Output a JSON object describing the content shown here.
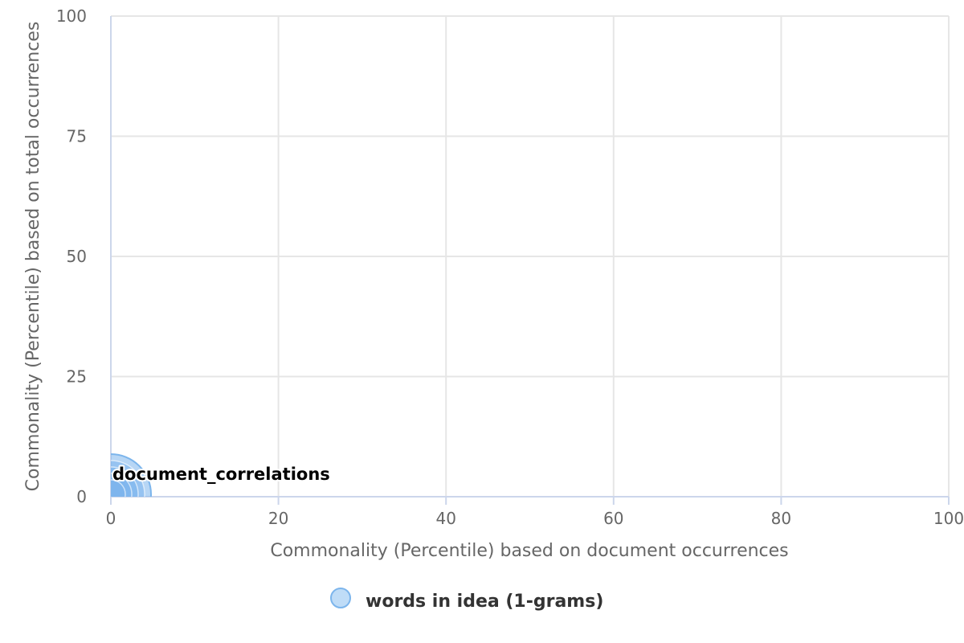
{
  "chart_data": {
    "type": "scatter",
    "xlabel": "Commonality (Percentile) based on document occurrences",
    "ylabel": "Commonality (Percentile) based on total occurrences",
    "xlim": [
      0,
      100
    ],
    "ylim": [
      0,
      100
    ],
    "x_ticks": [
      "0",
      "20",
      "40",
      "60",
      "80",
      "100"
    ],
    "y_ticks": [
      "0",
      "25",
      "50",
      "75",
      "100"
    ],
    "grid": true,
    "legend_position": "bottom-center",
    "series": [
      {
        "name": "words in idea (1-grams)",
        "color": "#7cb5ec",
        "points": [
          {
            "x": 0,
            "y": 0.5,
            "label": "document_correlations"
          }
        ]
      }
    ]
  }
}
